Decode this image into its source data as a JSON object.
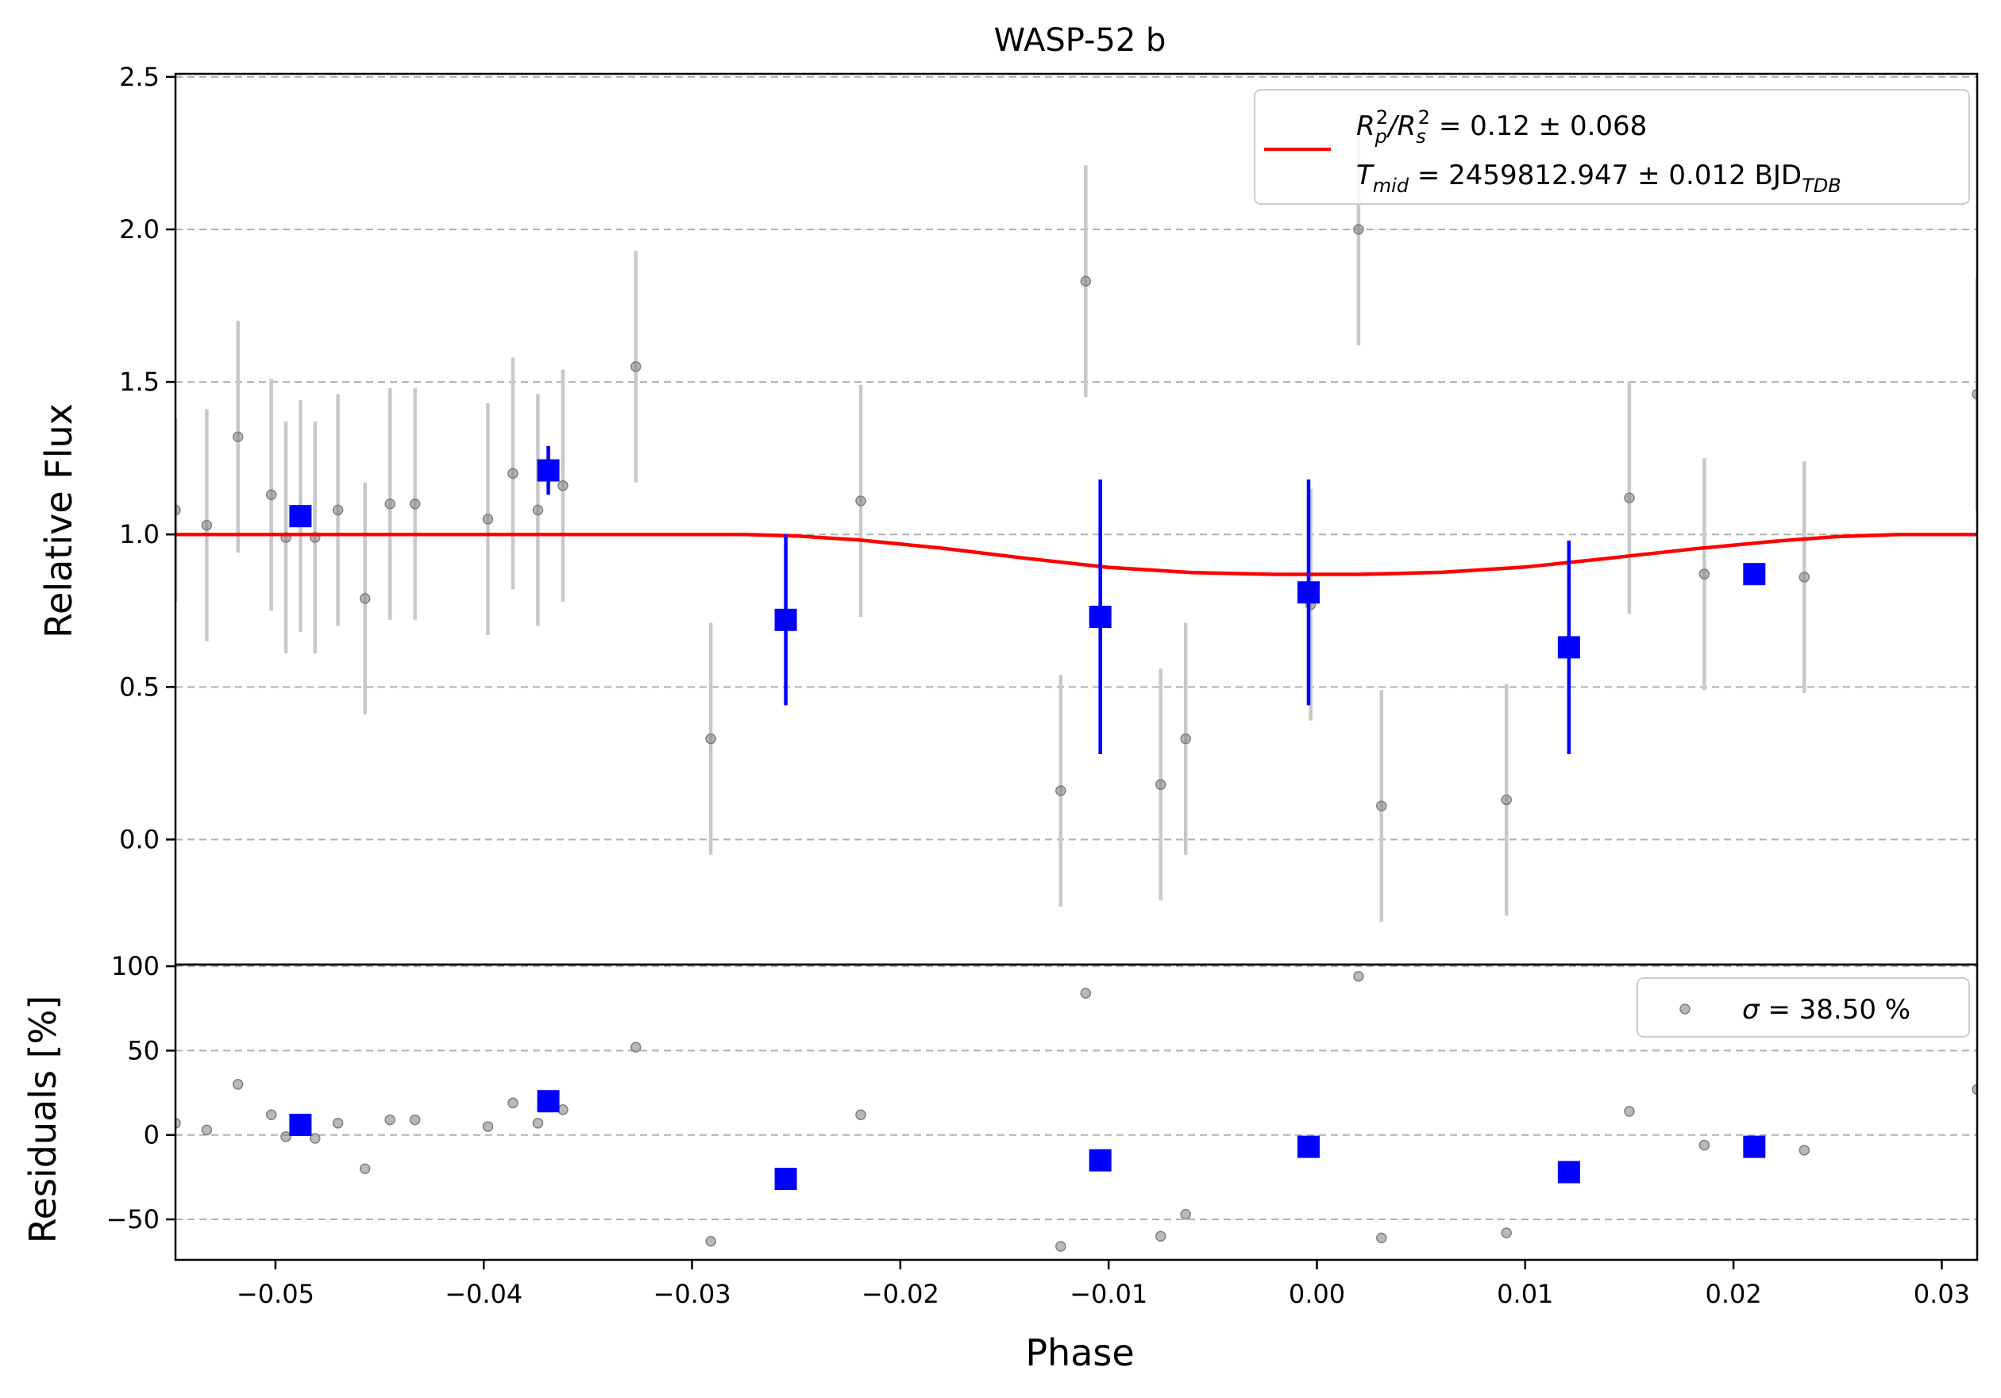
{
  "chart_data": {
    "type": "scatter",
    "title": "WASP-52 b",
    "xlabel": "Phase",
    "xlim": [
      -0.0548,
      0.0317
    ],
    "x_ticks": [
      -0.05,
      -0.04,
      -0.03,
      -0.02,
      -0.01,
      0.0,
      0.01,
      0.02,
      0.03
    ],
    "x_tick_labels": [
      "−0.05",
      "−0.04",
      "−0.03",
      "−0.02",
      "−0.01",
      "0.00",
      "0.01",
      "0.02",
      "0.03"
    ],
    "colors": {
      "raw": "#808080",
      "raw_err": "#c8c8c8",
      "binned": "#0000ff",
      "model": "#ff0000",
      "grid": "#b0b0b0"
    },
    "top_panel": {
      "ylabel": "Relative Flux",
      "ylim": [
        -0.41,
        2.51
      ],
      "y_ticks": [
        0.0,
        0.5,
        1.0,
        1.5,
        2.0,
        2.5
      ],
      "y_tick_labels": [
        "0.0",
        "0.5",
        "1.0",
        "1.5",
        "2.0",
        "2.5"
      ],
      "grid": true,
      "legend": {
        "placement": "top-right",
        "line1_prefix": "R",
        "line1_sub1": "p",
        "line1_sup1": "2",
        "line1_mid": "/R",
        "line1_sub2": "s",
        "line1_sup2": "2",
        "line1_value": " = 0.12 ± 0.068",
        "line2_prefix": "T",
        "line2_sub": "mid",
        "line2_value": " = 2459812.947 ± 0.012 BJD",
        "line2_unit_sub": "TDB"
      },
      "raw": [
        {
          "x": -0.0548,
          "y": 1.08,
          "err": 0.3
        },
        {
          "x": -0.0533,
          "y": 1.03,
          "err": 0.38
        },
        {
          "x": -0.0518,
          "y": 1.32,
          "err": 0.38
        },
        {
          "x": -0.0502,
          "y": 1.13,
          "err": 0.38
        },
        {
          "x": -0.0495,
          "y": 0.99,
          "err": 0.38
        },
        {
          "x": -0.0488,
          "y": 1.06,
          "err": 0.38
        },
        {
          "x": -0.0481,
          "y": 0.99,
          "err": 0.38
        },
        {
          "x": -0.047,
          "y": 1.08,
          "err": 0.38
        },
        {
          "x": -0.0457,
          "y": 0.79,
          "err": 0.38
        },
        {
          "x": -0.0445,
          "y": 1.1,
          "err": 0.38
        },
        {
          "x": -0.0433,
          "y": 1.1,
          "err": 0.38
        },
        {
          "x": -0.0398,
          "y": 1.05,
          "err": 0.38
        },
        {
          "x": -0.0386,
          "y": 1.2,
          "err": 0.38
        },
        {
          "x": -0.0374,
          "y": 1.08,
          "err": 0.38
        },
        {
          "x": -0.0362,
          "y": 1.16,
          "err": 0.38
        },
        {
          "x": -0.0327,
          "y": 1.55,
          "err": 0.38
        },
        {
          "x": -0.0291,
          "y": 0.33,
          "err": 0.38
        },
        {
          "x": -0.0219,
          "y": 1.11,
          "err": 0.38
        },
        {
          "x": -0.0123,
          "y": 0.16,
          "err": 0.38
        },
        {
          "x": -0.0111,
          "y": 1.83,
          "err": 0.38
        },
        {
          "x": -0.0075,
          "y": 0.18,
          "err": 0.38
        },
        {
          "x": -0.0063,
          "y": 0.33,
          "err": 0.38
        },
        {
          "x": -0.0003,
          "y": 0.77,
          "err": 0.38
        },
        {
          "x": 0.002,
          "y": 2.0,
          "err": 0.38
        },
        {
          "x": 0.0031,
          "y": 0.11,
          "err": 0.38
        },
        {
          "x": 0.0091,
          "y": 0.13,
          "err": 0.38
        },
        {
          "x": 0.015,
          "y": 1.12,
          "err": 0.38
        },
        {
          "x": 0.0186,
          "y": 0.87,
          "err": 0.38
        },
        {
          "x": 0.0234,
          "y": 0.86,
          "err": 0.38
        },
        {
          "x": 0.0317,
          "y": 1.46,
          "err": 0.38
        }
      ],
      "binned": [
        {
          "x": -0.0488,
          "y": 1.06,
          "err": 0.0
        },
        {
          "x": -0.0369,
          "y": 1.21,
          "err": 0.08
        },
        {
          "x": -0.0255,
          "y": 0.72,
          "err": 0.28
        },
        {
          "x": -0.0104,
          "y": 0.73,
          "err": 0.45
        },
        {
          "x": -0.0004,
          "y": 0.81,
          "err": 0.37
        },
        {
          "x": 0.0121,
          "y": 0.63,
          "err": 0.35
        },
        {
          "x": 0.021,
          "y": 0.87,
          "err": 0.0
        }
      ],
      "model": [
        {
          "x": -0.0548,
          "y": 1.0
        },
        {
          "x": -0.0275,
          "y": 1.0
        },
        {
          "x": -0.025,
          "y": 0.995
        },
        {
          "x": -0.022,
          "y": 0.982
        },
        {
          "x": -0.018,
          "y": 0.955
        },
        {
          "x": -0.014,
          "y": 0.922
        },
        {
          "x": -0.01,
          "y": 0.892
        },
        {
          "x": -0.006,
          "y": 0.875
        },
        {
          "x": -0.002,
          "y": 0.869
        },
        {
          "x": 0.002,
          "y": 0.869
        },
        {
          "x": 0.006,
          "y": 0.876
        },
        {
          "x": 0.01,
          "y": 0.893
        },
        {
          "x": 0.014,
          "y": 0.922
        },
        {
          "x": 0.018,
          "y": 0.952
        },
        {
          "x": 0.022,
          "y": 0.978
        },
        {
          "x": 0.025,
          "y": 0.993
        },
        {
          "x": 0.028,
          "y": 1.0
        },
        {
          "x": 0.0317,
          "y": 1.0
        }
      ]
    },
    "bottom_panel": {
      "ylabel": "Residuals [%]",
      "ylim": [
        -74,
        101
      ],
      "y_ticks": [
        -50,
        0,
        50,
        100
      ],
      "y_tick_labels": [
        "−50",
        "0",
        "50",
        "100"
      ],
      "grid": true,
      "legend": {
        "placement": "top-right",
        "sigma_symbol": "σ",
        "value": " = 38.50 %"
      },
      "raw": [
        {
          "x": -0.0548,
          "y": 7
        },
        {
          "x": -0.0533,
          "y": 3
        },
        {
          "x": -0.0518,
          "y": 30
        },
        {
          "x": -0.0502,
          "y": 12
        },
        {
          "x": -0.0495,
          "y": -1
        },
        {
          "x": -0.0481,
          "y": -2
        },
        {
          "x": -0.047,
          "y": 7
        },
        {
          "x": -0.0457,
          "y": -20
        },
        {
          "x": -0.0445,
          "y": 9
        },
        {
          "x": -0.0433,
          "y": 9
        },
        {
          "x": -0.0398,
          "y": 5
        },
        {
          "x": -0.0386,
          "y": 19
        },
        {
          "x": -0.0374,
          "y": 7
        },
        {
          "x": -0.0362,
          "y": 15
        },
        {
          "x": -0.0327,
          "y": 52
        },
        {
          "x": -0.0291,
          "y": -63
        },
        {
          "x": -0.0219,
          "y": 12
        },
        {
          "x": -0.0123,
          "y": -66
        },
        {
          "x": -0.0111,
          "y": 84
        },
        {
          "x": -0.0075,
          "y": -60
        },
        {
          "x": -0.0063,
          "y": -47
        },
        {
          "x": 0.002,
          "y": 94
        },
        {
          "x": 0.0031,
          "y": -61
        },
        {
          "x": 0.0091,
          "y": -58
        },
        {
          "x": 0.015,
          "y": 14
        },
        {
          "x": 0.0186,
          "y": -6
        },
        {
          "x": 0.0234,
          "y": -9
        },
        {
          "x": 0.0317,
          "y": 27
        }
      ],
      "binned": [
        {
          "x": -0.0488,
          "y": 6
        },
        {
          "x": -0.0369,
          "y": 20
        },
        {
          "x": -0.0255,
          "y": -26
        },
        {
          "x": -0.0104,
          "y": -15
        },
        {
          "x": -0.0004,
          "y": -7
        },
        {
          "x": 0.0121,
          "y": -22
        },
        {
          "x": 0.021,
          "y": -7
        }
      ]
    }
  }
}
